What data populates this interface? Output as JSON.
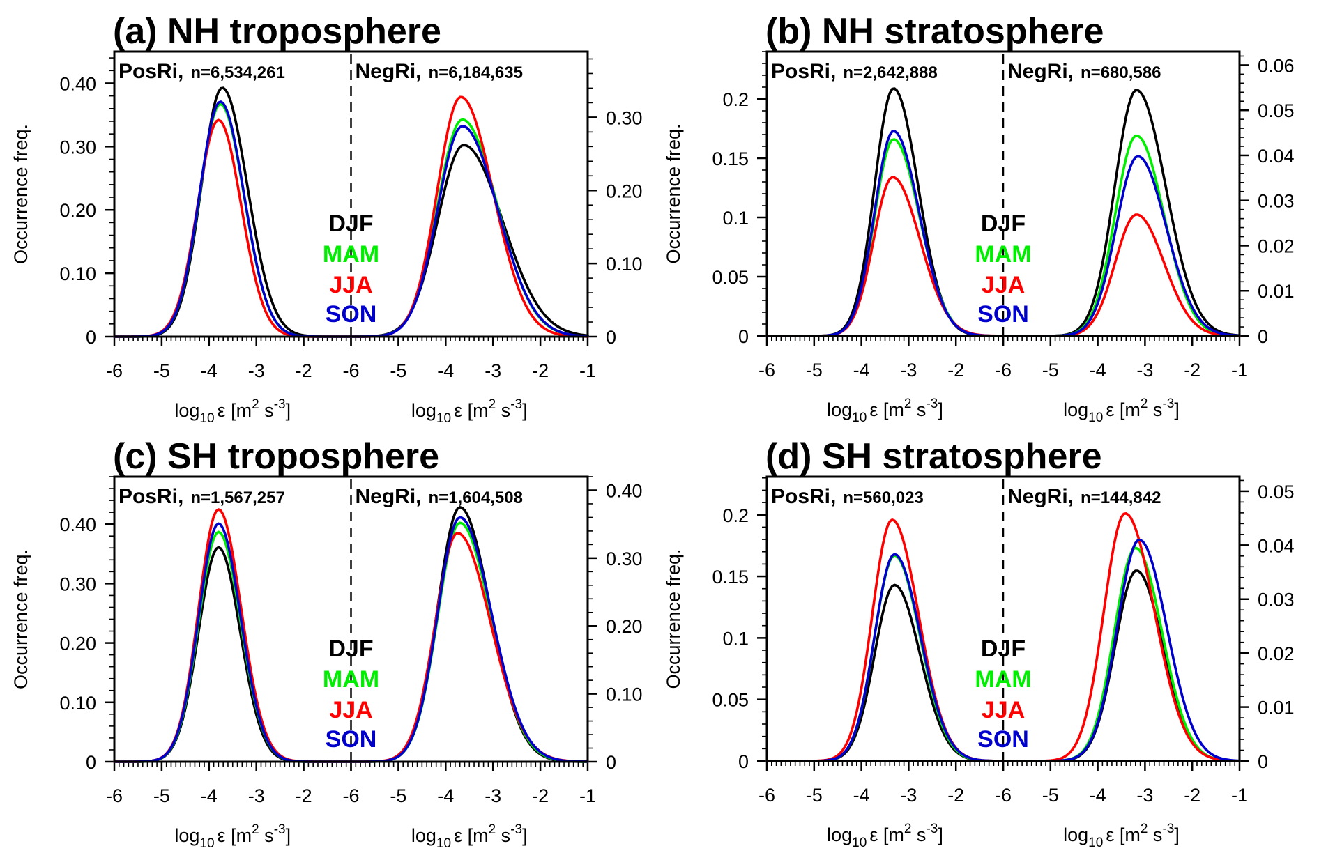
{
  "chart_data": [
    {
      "type": "line",
      "title": "(a) NH troposphere",
      "ylabel": "Occurrence freq.",
      "xlabel": "log10 ε [m2 s-3]",
      "xlabel_parts": {
        "pre": "log",
        "sub": "10",
        "eps": "ε [m",
        "sup1": "2",
        "mid": " s",
        "sup2": "-3",
        "post": "]"
      },
      "x_ticks": [
        "-6",
        "-5",
        "-4",
        "-3",
        "-2"
      ],
      "x_ticks_right": [
        "-6",
        "-5",
        "-4",
        "-3",
        "-2",
        "-1"
      ],
      "left": {
        "header": "PosRi,",
        "n_label": "n=6,534,261",
        "ylim": [
          0,
          0.45
        ],
        "yticks": [
          0,
          0.1,
          0.2,
          0.3,
          0.4
        ],
        "ytick_labels": [
          "0",
          "0.10",
          "0.20",
          "0.30",
          "0.40"
        ],
        "minor_step": 0.02,
        "series": [
          {
            "name": "DJF",
            "peak_x": -3.72,
            "peak_y": 0.393,
            "sigma_left": 0.44,
            "sigma_right": 0.53
          },
          {
            "name": "MAM",
            "peak_x": -3.76,
            "peak_y": 0.367,
            "sigma_left": 0.44,
            "sigma_right": 0.5
          },
          {
            "name": "JJA",
            "peak_x": -3.8,
            "peak_y": 0.342,
            "sigma_left": 0.44,
            "sigma_right": 0.48
          },
          {
            "name": "SON",
            "peak_x": -3.76,
            "peak_y": 0.371,
            "sigma_left": 0.44,
            "sigma_right": 0.5
          }
        ]
      },
      "right": {
        "header": "NegRi,",
        "n_label": "n=6,184,635",
        "ylim": [
          0,
          0.39
        ],
        "yticks": [
          0,
          0.1,
          0.2,
          0.3
        ],
        "ytick_labels": [
          "0",
          "0.10",
          "0.20",
          "0.30"
        ],
        "minor_step": 0.02,
        "series": [
          {
            "name": "DJF",
            "peak_x": -3.62,
            "peak_y": 0.262,
            "sigma_left": 0.55,
            "sigma_right": 0.82
          },
          {
            "name": "MAM",
            "peak_x": -3.65,
            "peak_y": 0.297,
            "sigma_left": 0.52,
            "sigma_right": 0.74
          },
          {
            "name": "JJA",
            "peak_x": -3.68,
            "peak_y": 0.328,
            "sigma_left": 0.5,
            "sigma_right": 0.68
          },
          {
            "name": "SON",
            "peak_x": -3.65,
            "peak_y": 0.288,
            "sigma_left": 0.52,
            "sigma_right": 0.75
          }
        ]
      },
      "legend": [
        "DJF",
        "MAM",
        "JJA",
        "SON"
      ],
      "legend_placement": "center"
    },
    {
      "type": "line",
      "title": "(b) NH stratosphere",
      "ylabel": "Occurrence freq.",
      "xlabel": "log10 ε [m2 s-3]",
      "xlabel_parts": {
        "pre": "log",
        "sub": "10",
        "eps": "ε [m",
        "sup1": "2",
        "mid": " s",
        "sup2": "-3",
        "post": "]"
      },
      "x_ticks": [
        "-6",
        "-5",
        "-4",
        "-3",
        "-2"
      ],
      "x_ticks_right": [
        "-6",
        "-5",
        "-4",
        "-3",
        "-2",
        "-1"
      ],
      "left": {
        "header": "PosRi,",
        "n_label": "n=2,642,888",
        "ylim": [
          0,
          0.24
        ],
        "yticks": [
          0,
          0.05,
          0.1,
          0.15,
          0.2
        ],
        "ytick_labels": [
          "0",
          "0.05",
          "0.1",
          "0.15",
          "0.2"
        ],
        "minor_step": 0.01,
        "series": [
          {
            "name": "DJF",
            "peak_x": -3.32,
            "peak_y": 0.209,
            "sigma_left": 0.4,
            "sigma_right": 0.52
          },
          {
            "name": "MAM",
            "peak_x": -3.32,
            "peak_y": 0.166,
            "sigma_left": 0.4,
            "sigma_right": 0.55
          },
          {
            "name": "JJA",
            "peak_x": -3.34,
            "peak_y": 0.134,
            "sigma_left": 0.4,
            "sigma_right": 0.58
          },
          {
            "name": "SON",
            "peak_x": -3.32,
            "peak_y": 0.173,
            "sigma_left": 0.4,
            "sigma_right": 0.54
          }
        ]
      },
      "right": {
        "header": "NegRi,",
        "n_label": "n=680,586",
        "ylim": [
          0,
          0.063
        ],
        "yticks": [
          0,
          0.01,
          0.02,
          0.03,
          0.04,
          0.05,
          0.06
        ],
        "ytick_labels": [
          "0",
          "0.01",
          "0.02",
          "0.03",
          "0.04",
          "0.05",
          "0.06"
        ],
        "minor_step": 0.002,
        "series": [
          {
            "name": "DJF",
            "peak_x": -3.18,
            "peak_y": 0.0545,
            "sigma_left": 0.46,
            "sigma_right": 0.62
          },
          {
            "name": "MAM",
            "peak_x": -3.18,
            "peak_y": 0.0444,
            "sigma_left": 0.45,
            "sigma_right": 0.58
          },
          {
            "name": "JJA",
            "peak_x": -3.18,
            "peak_y": 0.0269,
            "sigma_left": 0.45,
            "sigma_right": 0.58
          },
          {
            "name": "SON",
            "peak_x": -3.15,
            "peak_y": 0.0398,
            "sigma_left": 0.46,
            "sigma_right": 0.6
          }
        ]
      },
      "legend": [
        "DJF",
        "MAM",
        "JJA",
        "SON"
      ],
      "legend_placement": "center"
    },
    {
      "type": "line",
      "title": "(c) SH troposphere",
      "ylabel": "Occurrence freq.",
      "xlabel": "log10 ε [m2 s-3]",
      "xlabel_parts": {
        "pre": "log",
        "sub": "10",
        "eps": "ε [m",
        "sup1": "2",
        "mid": " s",
        "sup2": "-3",
        "post": "]"
      },
      "x_ticks": [
        "-6",
        "-5",
        "-4",
        "-3",
        "-2"
      ],
      "x_ticks_right": [
        "-6",
        "-5",
        "-4",
        "-3",
        "-2",
        "-1"
      ],
      "left": {
        "header": "PosRi,",
        "n_label": "n=1,567,257",
        "ylim": [
          0,
          0.48
        ],
        "yticks": [
          0,
          0.1,
          0.2,
          0.3,
          0.4
        ],
        "ytick_labels": [
          "0",
          "0.10",
          "0.20",
          "0.30",
          "0.40"
        ],
        "minor_step": 0.02,
        "series": [
          {
            "name": "DJF",
            "peak_x": -3.8,
            "peak_y": 0.361,
            "sigma_left": 0.42,
            "sigma_right": 0.46
          },
          {
            "name": "MAM",
            "peak_x": -3.8,
            "peak_y": 0.387,
            "sigma_left": 0.42,
            "sigma_right": 0.47
          },
          {
            "name": "JJA",
            "peak_x": -3.8,
            "peak_y": 0.425,
            "sigma_left": 0.42,
            "sigma_right": 0.48
          },
          {
            "name": "SON",
            "peak_x": -3.8,
            "peak_y": 0.401,
            "sigma_left": 0.42,
            "sigma_right": 0.47
          }
        ]
      },
      "right": {
        "header": "NegRi,",
        "n_label": "n=1,604,508",
        "ylim": [
          0,
          0.42
        ],
        "yticks": [
          0,
          0.1,
          0.2,
          0.3,
          0.4
        ],
        "ytick_labels": [
          "0",
          "0.10",
          "0.20",
          "0.30",
          "0.40"
        ],
        "minor_step": 0.02,
        "series": [
          {
            "name": "DJF",
            "peak_x": -3.7,
            "peak_y": 0.375,
            "sigma_left": 0.47,
            "sigma_right": 0.64
          },
          {
            "name": "MAM",
            "peak_x": -3.7,
            "peak_y": 0.352,
            "sigma_left": 0.47,
            "sigma_right": 0.66
          },
          {
            "name": "JJA",
            "peak_x": -3.75,
            "peak_y": 0.337,
            "sigma_left": 0.47,
            "sigma_right": 0.7
          },
          {
            "name": "SON",
            "peak_x": -3.7,
            "peak_y": 0.36,
            "sigma_left": 0.47,
            "sigma_right": 0.67
          }
        ]
      },
      "legend": [
        "DJF",
        "MAM",
        "JJA",
        "SON"
      ],
      "legend_placement": "center"
    },
    {
      "type": "line",
      "title": "(d) SH stratosphere",
      "ylabel": "Occurrence freq.",
      "xlabel": "log10 ε [m2 s-3]",
      "xlabel_parts": {
        "pre": "log",
        "sub": "10",
        "eps": "ε [m",
        "sup1": "2",
        "mid": " s",
        "sup2": "-3",
        "post": "]"
      },
      "x_ticks": [
        "-6",
        "-5",
        "-4",
        "-3",
        "-2"
      ],
      "x_ticks_right": [
        "-6",
        "-5",
        "-4",
        "-3",
        "-2",
        "-1"
      ],
      "left": {
        "header": "PosRi,",
        "n_label": "n=560,023",
        "ylim": [
          0,
          0.231
        ],
        "yticks": [
          0,
          0.05,
          0.1,
          0.15,
          0.2
        ],
        "ytick_labels": [
          "0",
          "0.05",
          "0.1",
          "0.15",
          "0.2"
        ],
        "minor_step": 0.01,
        "series": [
          {
            "name": "DJF",
            "peak_x": -3.3,
            "peak_y": 0.143,
            "sigma_left": 0.42,
            "sigma_right": 0.54
          },
          {
            "name": "MAM",
            "peak_x": -3.3,
            "peak_y": 0.167,
            "sigma_left": 0.42,
            "sigma_right": 0.54
          },
          {
            "name": "JJA",
            "peak_x": -3.35,
            "peak_y": 0.196,
            "sigma_left": 0.42,
            "sigma_right": 0.56
          },
          {
            "name": "SON",
            "peak_x": -3.3,
            "peak_y": 0.168,
            "sigma_left": 0.42,
            "sigma_right": 0.55
          }
        ]
      },
      "right": {
        "header": "NegRi,",
        "n_label": "n=144,842",
        "ylim": [
          0,
          0.0527
        ],
        "yticks": [
          0,
          0.01,
          0.02,
          0.03,
          0.04,
          0.05
        ],
        "ytick_labels": [
          "0",
          "0.01",
          "0.02",
          "0.03",
          "0.04",
          "0.05"
        ],
        "minor_step": 0.002,
        "series": [
          {
            "name": "DJF",
            "peak_x": -3.18,
            "peak_y": 0.0353,
            "sigma_left": 0.45,
            "sigma_right": 0.56
          },
          {
            "name": "MAM",
            "peak_x": -3.2,
            "peak_y": 0.0395,
            "sigma_left": 0.45,
            "sigma_right": 0.56
          },
          {
            "name": "JJA",
            "peak_x": -3.42,
            "peak_y": 0.0459,
            "sigma_left": 0.45,
            "sigma_right": 0.62
          },
          {
            "name": "SON",
            "peak_x": -3.12,
            "peak_y": 0.041,
            "sigma_left": 0.47,
            "sigma_right": 0.58
          }
        ]
      },
      "legend": [
        "DJF",
        "MAM",
        "JJA",
        "SON"
      ],
      "legend_placement": "center"
    }
  ],
  "season_colors": {
    "DJF": "#000000",
    "MAM": "#00ee00",
    "JJA": "#ff0000",
    "SON": "#0000cc"
  },
  "x_range": [
    -6,
    -1
  ]
}
